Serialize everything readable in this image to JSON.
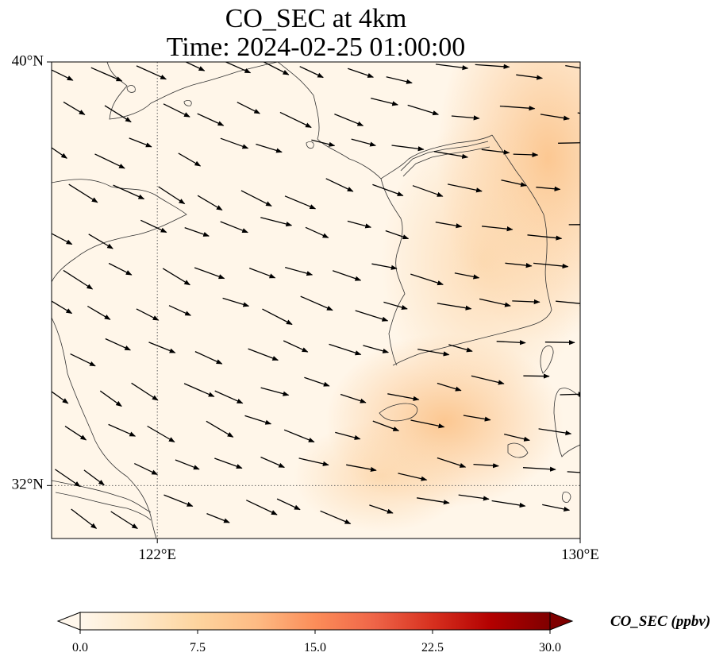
{
  "map": {
    "title_line1": "CO_SEC at 4km",
    "title_line2": "Time: 2024-02-25 01:00:00",
    "lat_ticks": [
      {
        "label": "40°N",
        "lat": 40
      },
      {
        "label": "32°N",
        "lat": 32
      }
    ],
    "lon_ticks": [
      {
        "label": "122°E",
        "lon": 122
      },
      {
        "label": "130°E",
        "lon": 130
      }
    ],
    "extent": {
      "lon_min": 120.0,
      "lon_max": 130.0,
      "lat_min": 31.0,
      "lat_max": 40.0
    },
    "gridlines": "dotted at 122°E and 32°N"
  },
  "colorbar": {
    "label": "CO_SEC (ppbv)",
    "ticks": [
      "0.0",
      "7.5",
      "15.0",
      "22.5",
      "30.0"
    ],
    "min": 0,
    "max": 30,
    "extend": "both",
    "colormap": "OrRd",
    "colors": [
      "#fff7ec",
      "#fee8c8",
      "#fdd49e",
      "#fdbb84",
      "#fc8d59",
      "#ef6548",
      "#d7301f",
      "#b30000",
      "#7f0000"
    ]
  },
  "colors": {
    "field_low": "#fff6e9",
    "field_high": "#fbc58a",
    "coastline": "#333333",
    "wind_arrow": "#000000"
  },
  "wind": {
    "description": "wind vectors generally blowing toward the east-southeast",
    "direction": "ESE"
  }
}
